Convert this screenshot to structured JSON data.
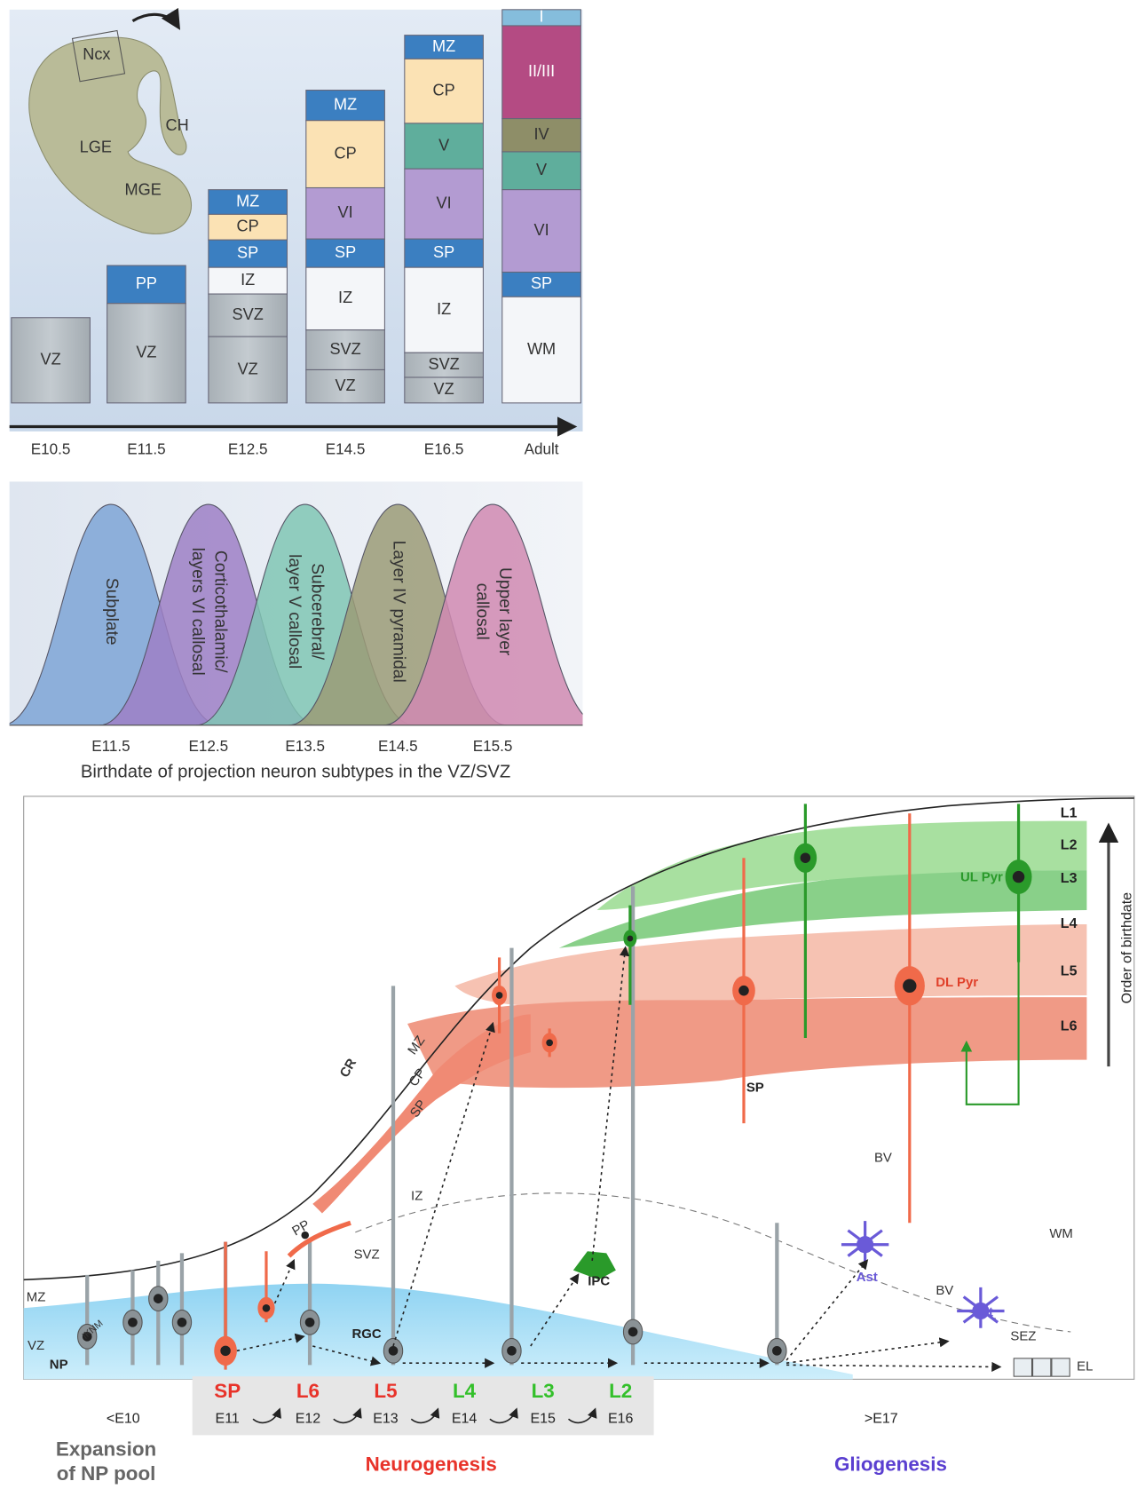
{
  "panel_a": {
    "brain_labels": [
      "Ncx",
      "CH",
      "LGE",
      "MGE"
    ],
    "columns": [
      {
        "stage": "E10.5",
        "layers": [
          "VZ"
        ]
      },
      {
        "stage": "E11.5",
        "layers": [
          "PP",
          "VZ"
        ]
      },
      {
        "stage": "E12.5",
        "layers": [
          "MZ",
          "CP",
          "SP",
          "IZ",
          "SVZ",
          "VZ"
        ]
      },
      {
        "stage": "E14.5",
        "layers": [
          "MZ",
          "CP",
          "VI",
          "SP",
          "IZ",
          "SVZ",
          "VZ"
        ]
      },
      {
        "stage": "E16.5",
        "layers": [
          "MZ",
          "CP",
          "V",
          "VI",
          "SP",
          "IZ",
          "SVZ",
          "VZ"
        ]
      },
      {
        "stage": "Adult",
        "layers": [
          "I",
          "II/III",
          "IV",
          "V",
          "VI",
          "SP",
          "WM"
        ]
      }
    ]
  },
  "panel_b": {
    "subtypes": [
      [
        "Subplate"
      ],
      [
        "Corticothalamic/",
        "layers VI callosal"
      ],
      [
        "Subcerebral/",
        "layer V callosal"
      ],
      [
        "Layer IV pyramidal"
      ],
      [
        "Upper layer",
        "callosal"
      ]
    ],
    "stages": [
      "E11.5",
      "E12.5",
      "E13.5",
      "E14.5",
      "E15.5"
    ],
    "caption": "Birthdate of projection neuron subtypes in the VZ/SVZ"
  },
  "panel_c": {
    "layers": [
      "L1",
      "L2",
      "L3",
      "L4",
      "L5",
      "L6"
    ],
    "axis_label": "Order of birthdate",
    "labels": [
      "CR",
      "MZ",
      "CP",
      "SP",
      "IZ",
      "PP",
      "SVZ",
      "SP",
      "UL Pyr",
      "DL Pyr",
      "MZ",
      "VZ",
      "IKNM",
      "NP",
      "RGC",
      "IPC",
      "BV",
      "Ast",
      "BV",
      "Ast",
      "SEZ",
      "EL",
      "WM"
    ],
    "timeline": [
      {
        "layer": "SP",
        "stage": "E11"
      },
      {
        "layer": "L6",
        "stage": "E12"
      },
      {
        "layer": "L5",
        "stage": "E13"
      },
      {
        "layer": "L4",
        "stage": "E14"
      },
      {
        "layer": "L3",
        "stage": "E15"
      },
      {
        "layer": "L2",
        "stage": "E16"
      }
    ],
    "early_stage": "<E10",
    "late_stage": ">E17",
    "phases": {
      "expansion": [
        "Expansion",
        "of NP pool"
      ],
      "neurogenesis": "Neurogenesis",
      "gliogenesis": "Gliogenesis"
    }
  }
}
